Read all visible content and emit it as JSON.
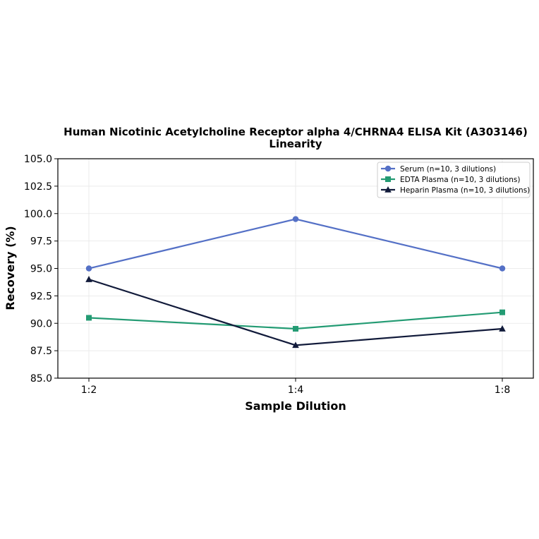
{
  "chart_data": {
    "type": "line",
    "title": "Human Nicotinic Acetylcholine Receptor alpha 4/CHRNA4 ELISA Kit (A303146)",
    "subtitle": "Linearity",
    "xlabel": "Sample Dilution",
    "ylabel": "Recovery (%)",
    "categories": [
      "1:2",
      "1:4",
      "1:8"
    ],
    "ylim": [
      85.0,
      105.0
    ],
    "yticks": [
      "85.0",
      "87.5",
      "90.0",
      "92.5",
      "95.0",
      "97.5",
      "100.0",
      "102.5",
      "105.0"
    ],
    "grid": true,
    "legend_position": "top-right",
    "series": [
      {
        "name": "Serum (n=10, 3 dilutions)",
        "values": [
          95.0,
          99.5,
          95.0
        ],
        "color": "#5470c6",
        "marker": "circle"
      },
      {
        "name": "EDTA Plasma (n=10, 3 dilutions)",
        "values": [
          90.5,
          89.5,
          91.0
        ],
        "color": "#239b73",
        "marker": "square"
      },
      {
        "name": "Heparin Plasma (n=10, 3 dilutions)",
        "values": [
          94.0,
          88.0,
          89.5
        ],
        "color": "#111a3a",
        "marker": "triangle"
      }
    ]
  }
}
